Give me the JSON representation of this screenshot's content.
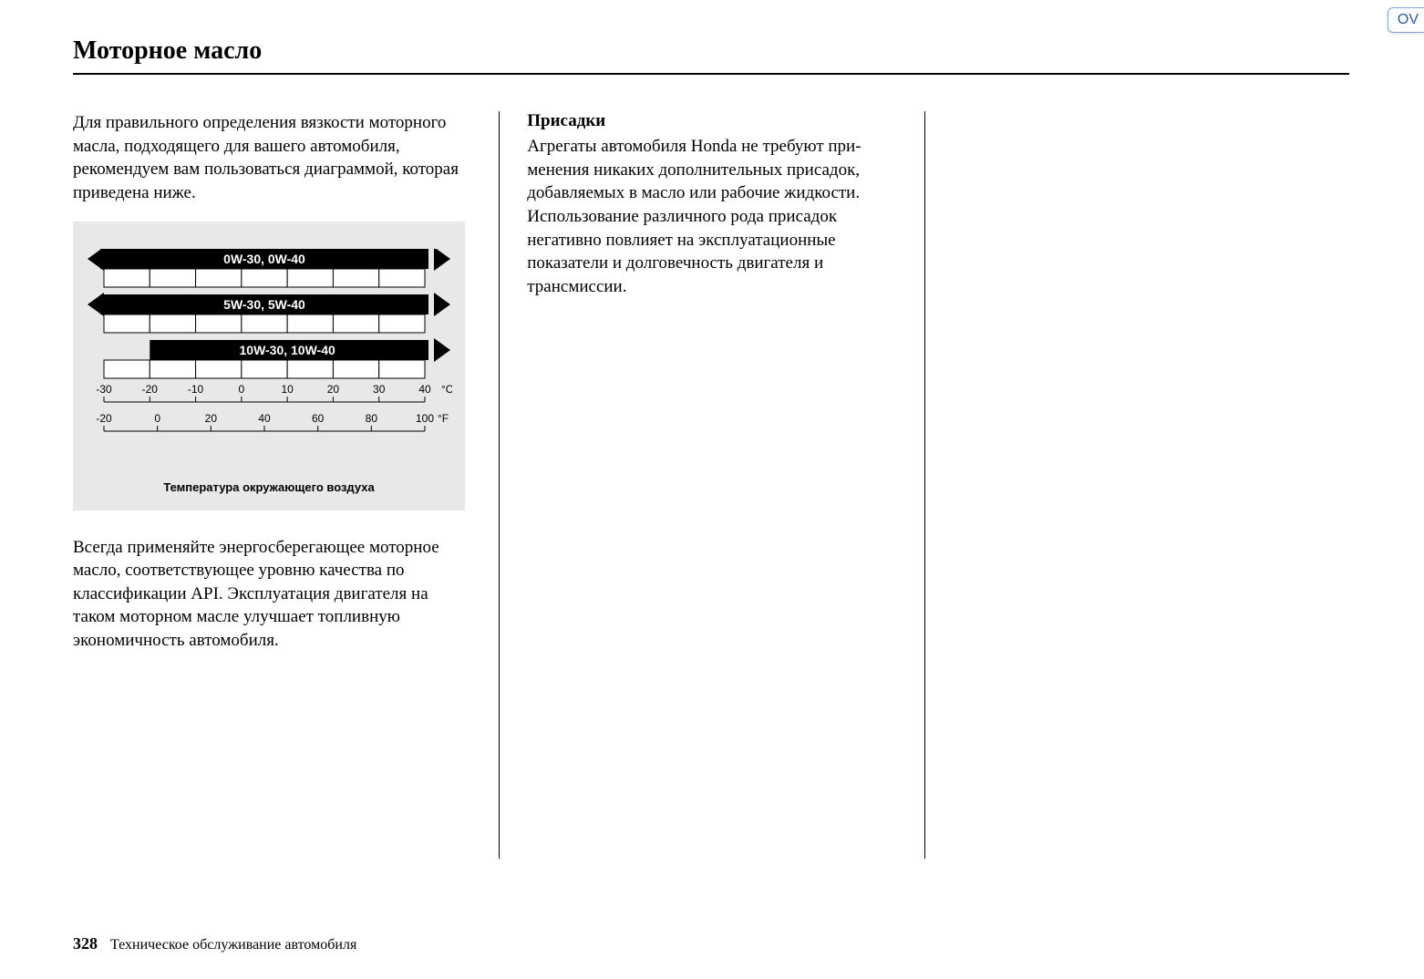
{
  "corner_tab": "OV",
  "title": "Моторное масло",
  "col1": {
    "para1": "Для правильного определения вязкости моторного масла, подходящего для вашего автомобиля, рекомендуем вам пользоваться диаграммой, которая приведена ниже.",
    "para2": "Всегда применяйте энергосберегающее моторное масло, соответствующее уровню качества по классификации API. Эксплуа­тация двигателя на таком моторном масле улучшает топливную экономичность авто­мобиля."
  },
  "col2": {
    "subhead": "Присадки",
    "para1": "Агрегаты автомобиля Honda не требуют при­менения никаких дополнительных присадок, добавляемых в масло или рабочие жидкости. Использование различного рода присадок негативно повлияет на эксплуатационные показатели и долговечность двигателя и трансмиссии."
  },
  "chart": {
    "type": "range-bar",
    "background_color": "#e8e8e8",
    "bar_color": "#000000",
    "cell_fill": "#ffffff",
    "cell_stroke": "#000000",
    "label_color": "#ffffff",
    "tick_color": "#000000",
    "tick_fontsize": 12,
    "bar_label_fontsize": 14,
    "caption": "Температура окружающего воздуха",
    "celsius": {
      "unit": "°C",
      "min": -30,
      "max": 40,
      "ticks": [
        -30,
        -20,
        -10,
        0,
        10,
        20,
        30,
        40
      ]
    },
    "fahrenheit": {
      "unit": "°F",
      "min": -20,
      "max": 100,
      "ticks": [
        -20,
        0,
        20,
        40,
        60,
        80,
        100
      ]
    },
    "bars": [
      {
        "label": "0W-30, 0W-40",
        "from_c": -30,
        "to_c": 40,
        "arrow_left": true,
        "arrow_right": true
      },
      {
        "label": "5W-30, 5W-40",
        "from_c": -30,
        "to_c": 40,
        "arrow_left": true,
        "arrow_right": true
      },
      {
        "label": "10W-30, 10W-40",
        "from_c": -20,
        "to_c": 40,
        "arrow_left": false,
        "arrow_right": true
      }
    ]
  },
  "footer": {
    "page_number": "328",
    "section": "Техническое обслуживание автомобиля"
  }
}
